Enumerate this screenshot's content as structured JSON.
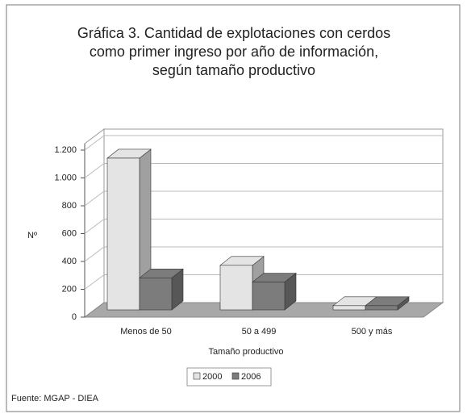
{
  "chart_data": {
    "type": "bar3d",
    "title": "Gráfica 3. Cantidad de explotaciones con cerdos como primer ingreso por año de información, según tamaño productivo",
    "categories": [
      "Menos de 50",
      "50 a 499",
      "500 y más"
    ],
    "series": [
      {
        "name": "2000",
        "color": "#e4e4e4",
        "values": [
          1090,
          320,
          30
        ]
      },
      {
        "name": "2006",
        "color": "#7c7c7c",
        "values": [
          230,
          200,
          30
        ]
      }
    ],
    "ylim": [
      0,
      1200
    ],
    "yticks": [
      0,
      200,
      400,
      600,
      800,
      {
        "value": 1000,
        "label": "1.000"
      },
      {
        "value": 1200,
        "label": "1.200"
      }
    ],
    "y_label": "Nº",
    "x_label": "Tamaño productivo",
    "grid": true,
    "legend": "bottom",
    "source": "Fuente: MGAP - DIEA"
  }
}
